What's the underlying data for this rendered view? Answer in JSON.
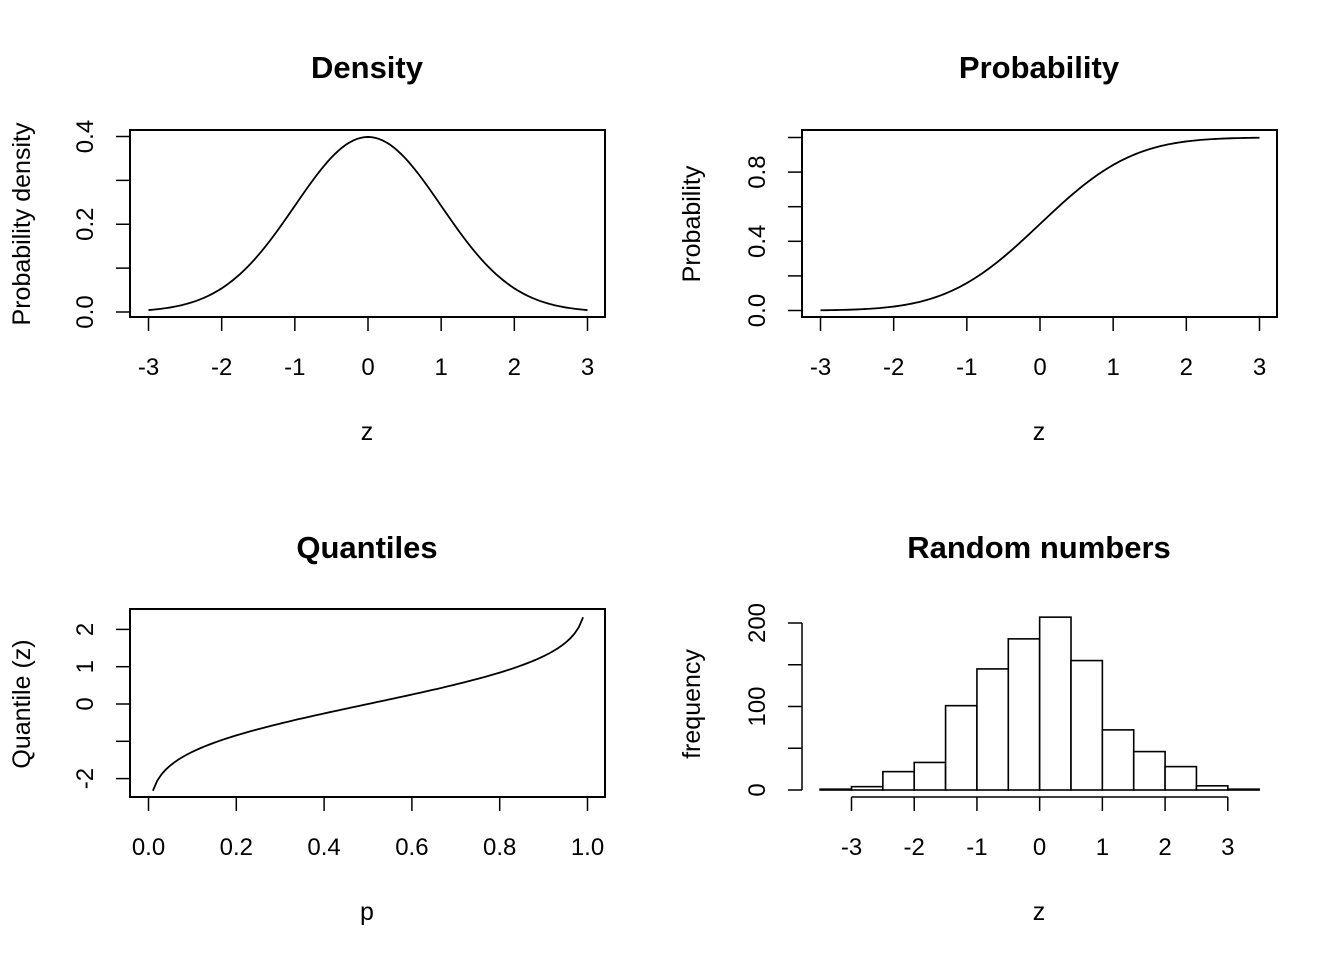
{
  "panels": [
    {
      "id": "density",
      "title": "Density",
      "xlabel": "z",
      "ylabel": "Probability density",
      "x_ticks": [
        "-3",
        "-2",
        "-1",
        "0",
        "1",
        "2",
        "3"
      ],
      "y_ticks": [
        "0.0",
        "0.2",
        "0.4"
      ]
    },
    {
      "id": "probability",
      "title": "Probability",
      "xlabel": "z",
      "ylabel": "Probability",
      "x_ticks": [
        "-3",
        "-2",
        "-1",
        "0",
        "1",
        "2",
        "3"
      ],
      "y_ticks": [
        "0.0",
        "0.4",
        "0.8"
      ]
    },
    {
      "id": "quantiles",
      "title": "Quantiles",
      "xlabel": "p",
      "ylabel": "Quantile (z)",
      "x_ticks": [
        "0.0",
        "0.2",
        "0.4",
        "0.6",
        "0.8",
        "1.0"
      ],
      "y_ticks": [
        "-2",
        "0",
        "1",
        "2"
      ]
    },
    {
      "id": "random",
      "title": "Random numbers",
      "xlabel": "z",
      "ylabel": "frequency",
      "x_ticks": [
        "-3",
        "-2",
        "-1",
        "0",
        "1",
        "2",
        "3"
      ],
      "y_ticks": [
        "0",
        "100",
        "200"
      ]
    }
  ],
  "chart_data": [
    {
      "type": "line",
      "title": "Density",
      "xlabel": "z",
      "ylabel": "Probability density",
      "xlim": [
        -3,
        3
      ],
      "ylim": [
        0,
        0.4
      ],
      "function": "standard normal density",
      "x": [
        -3,
        -2.5,
        -2,
        -1.5,
        -1,
        -0.5,
        0,
        0.5,
        1,
        1.5,
        2,
        2.5,
        3
      ],
      "y": [
        0.0044,
        0.0175,
        0.054,
        0.1295,
        0.242,
        0.3521,
        0.3989,
        0.3521,
        0.242,
        0.1295,
        0.054,
        0.0175,
        0.0044
      ],
      "y_ticks": [
        0.0,
        0.1,
        0.2,
        0.3,
        0.4
      ],
      "x_ticks": [
        -3,
        -2,
        -1,
        0,
        1,
        2,
        3
      ]
    },
    {
      "type": "line",
      "title": "Probability",
      "xlabel": "z",
      "ylabel": "Probability",
      "xlim": [
        -3,
        3
      ],
      "ylim": [
        0,
        1
      ],
      "function": "standard normal CDF",
      "x": [
        -3,
        -2.5,
        -2,
        -1.5,
        -1,
        -0.5,
        0,
        0.5,
        1,
        1.5,
        2,
        2.5,
        3
      ],
      "y": [
        0.0013,
        0.0062,
        0.0228,
        0.0668,
        0.1587,
        0.3085,
        0.5,
        0.6915,
        0.8413,
        0.9332,
        0.9772,
        0.9938,
        0.9987
      ],
      "y_ticks": [
        0.0,
        0.2,
        0.4,
        0.6,
        0.8,
        1.0
      ],
      "x_ticks": [
        -3,
        -2,
        -1,
        0,
        1,
        2,
        3
      ]
    },
    {
      "type": "line",
      "title": "Quantiles",
      "xlabel": "p",
      "ylabel": "Quantile (z)",
      "xlim": [
        0,
        1
      ],
      "ylim": [
        -2.33,
        2.33
      ],
      "function": "standard normal quantile",
      "x": [
        0.01,
        0.05,
        0.1,
        0.2,
        0.3,
        0.4,
        0.5,
        0.6,
        0.7,
        0.8,
        0.9,
        0.95,
        0.99
      ],
      "y": [
        -2.326,
        -1.645,
        -1.282,
        -0.842,
        -0.524,
        -0.253,
        0,
        0.253,
        0.524,
        0.842,
        1.282,
        1.645,
        2.326
      ],
      "y_ticks": [
        -2,
        -1,
        0,
        1,
        2
      ],
      "x_ticks": [
        0.0,
        0.2,
        0.4,
        0.6,
        0.8,
        1.0
      ]
    },
    {
      "type": "bar",
      "title": "Random numbers",
      "xlabel": "z",
      "ylabel": "frequency",
      "xlim": [
        -3.5,
        3.5
      ],
      "ylim": [
        0,
        210
      ],
      "bin_edges": [
        -3.5,
        -3,
        -2.5,
        -2,
        -1.5,
        -1,
        -0.5,
        0,
        0.5,
        1,
        1.5,
        2,
        2.5,
        3,
        3.5
      ],
      "values": [
        1,
        4,
        22,
        33,
        101,
        145,
        181,
        207,
        155,
        72,
        46,
        28,
        5,
        1
      ],
      "y_ticks": [
        0,
        50,
        100,
        150,
        200
      ],
      "x_ticks": [
        -3,
        -2,
        -1,
        0,
        1,
        2,
        3
      ]
    }
  ]
}
